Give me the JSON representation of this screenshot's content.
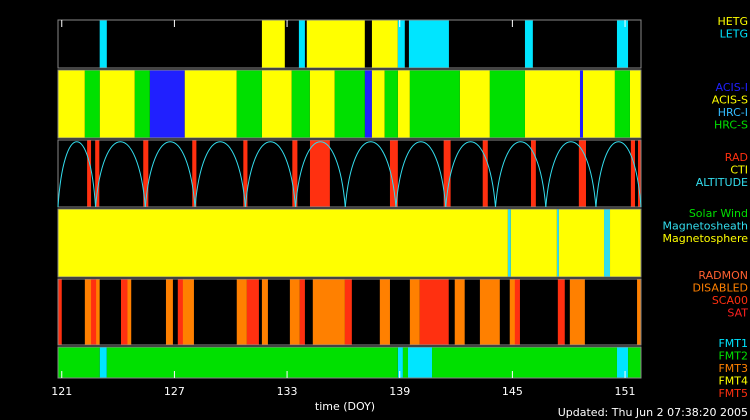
{
  "chart_data": {
    "type": "timeline",
    "xlabel": "time (DOY)",
    "footer": "Updated: Thu Jun  2 07:38:20 2005",
    "xlim": [
      120.8,
      151.85
    ],
    "xticks": [
      121,
      127,
      133,
      139,
      145,
      151
    ],
    "panels": [
      {
        "series": [
          {
            "name": "HETG",
            "color": "#ffff00",
            "values": [
              [
                131.66,
                132.88
              ],
              [
                134.05,
                137.14
              ],
              [
                137.52,
                138.9
              ]
            ]
          },
          {
            "name": "LETG",
            "color": "#00e5ff",
            "values": [
              [
                123.02,
                123.4
              ],
              [
                133.63,
                133.95
              ],
              [
                138.9,
                139.27
              ],
              [
                139.49,
                141.62
              ],
              [
                145.67,
                146.09
              ],
              [
                150.57,
                151.16
              ]
            ]
          }
        ]
      },
      {
        "series": [
          {
            "name": "ACIS-I",
            "color": "#2020ff",
            "values": [
              [
                125.69,
                127.55
              ],
              [
                137.14,
                137.52
              ],
              [
                148.6,
                148.76
              ]
            ]
          },
          {
            "name": "ACIS-S",
            "color": "#ffff00",
            "values": [
              [
                120.8,
                122.23
              ],
              [
                123.02,
                124.89
              ],
              [
                127.55,
                130.32
              ],
              [
                131.66,
                133.25
              ],
              [
                134.21,
                135.54
              ],
              [
                137.52,
                138.2
              ],
              [
                138.9,
                139.54
              ],
              [
                142.2,
                143.8
              ],
              [
                145.67,
                148.6
              ],
              [
                148.76,
                150.46
              ],
              [
                151.26,
                151.85
              ]
            ]
          },
          {
            "name": "HRC-I",
            "color": "#33bbff",
            "values": []
          },
          {
            "name": "HRC-S",
            "color": "#00e000",
            "values": [
              [
                122.23,
                123.02
              ],
              [
                124.89,
                125.69
              ],
              [
                130.32,
                131.66
              ],
              [
                133.25,
                134.21
              ],
              [
                135.54,
                137.14
              ],
              [
                138.2,
                138.9
              ],
              [
                139.54,
                142.2
              ],
              [
                143.8,
                145.67
              ],
              [
                150.46,
                151.26
              ]
            ]
          }
        ]
      },
      {
        "series": [
          {
            "name": "RAD",
            "color": "#ff3010",
            "values": [
              [
                122.35,
                122.56
              ],
              [
                122.78,
                123.0
              ],
              [
                125.34,
                125.61
              ],
              [
                127.95,
                128.17
              ],
              [
                130.67,
                130.89
              ],
              [
                133.28,
                133.55
              ],
              [
                134.22,
                135.28
              ],
              [
                138.48,
                138.9
              ],
              [
                141.34,
                141.71
              ],
              [
                143.42,
                143.69
              ],
              [
                145.99,
                146.25
              ],
              [
                148.54,
                148.92
              ],
              [
                151.31,
                151.53
              ],
              [
                151.69,
                151.85
              ]
            ]
          },
          {
            "name": "CTI",
            "color": "#ffff00",
            "values": []
          },
          {
            "name": "ALTITUDE",
            "color": "#33ddee",
            "values": [
              120.8,
              122.8,
              125.45,
              128.1,
              130.78,
              133.45,
              136.1,
              138.8,
              141.45,
              144.1,
              146.78,
              149.45,
              151.85
            ]
          }
        ]
      },
      {
        "series": [
          {
            "name": "Solar Wind",
            "color": "#00e000",
            "values": []
          },
          {
            "name": "Magnetosheath",
            "color": "#33ddee",
            "values": [
              [
                144.76,
                144.92
              ],
              [
                147.37,
                147.48
              ],
              [
                149.88,
                150.2
              ]
            ]
          },
          {
            "name": "Magnetosphere",
            "color": "#ffff00",
            "values": [
              [
                120.8,
                144.76
              ],
              [
                144.92,
                147.37
              ],
              [
                147.48,
                149.88
              ],
              [
                150.2,
                151.85
              ]
            ]
          }
        ]
      },
      {
        "series": [
          {
            "name": "RADMON",
            "color": "#ff6030",
            "values": []
          },
          {
            "name": "DISABLED",
            "color": "#ff8000",
            "values": [
              [
                122.23,
                123.02
              ],
              [
                124.16,
                124.7
              ],
              [
                126.55,
                126.92
              ],
              [
                127.34,
                128.04
              ],
              [
                130.32,
                130.86
              ],
              [
                131.66,
                131.98
              ],
              [
                133.15,
                133.68
              ],
              [
                134.37,
                136.08
              ],
              [
                137.94,
                138.48
              ],
              [
                139.54,
                140.07
              ],
              [
                141.93,
                142.46
              ],
              [
                143.27,
                144.33
              ],
              [
                144.86,
                145.39
              ],
              [
                148.06,
                148.86
              ],
              [
                151.64,
                151.85
              ]
            ]
          },
          {
            "name": "SCA00",
            "color": "#ff3010",
            "values": [
              [
                120.8,
                121.0
              ],
              [
                122.56,
                122.83
              ],
              [
                124.5,
                124.16
              ],
              [
                127.18,
                127.45
              ],
              [
                130.86,
                131.5
              ],
              [
                133.68,
                133.95
              ],
              [
                136.08,
                136.45
              ],
              [
                140.07,
                141.61
              ],
              [
                145.13,
                145.4
              ],
              [
                147.42,
                147.79
              ]
            ]
          },
          {
            "name": "SAT",
            "color": "#ff2020",
            "values": []
          }
        ]
      },
      {
        "series": [
          {
            "name": "FMT1",
            "color": "#00e5ff",
            "values": [
              [
                123.02,
                123.4
              ],
              [
                138.9,
                139.17
              ],
              [
                139.44,
                140.72
              ],
              [
                150.57,
                151.16
              ]
            ]
          },
          {
            "name": "FMT2",
            "color": "#00e000",
            "values": [
              [
                120.8,
                123.02
              ],
              [
                123.4,
                138.9
              ],
              [
                139.17,
                139.44
              ],
              [
                140.72,
                150.57
              ],
              [
                151.16,
                151.85
              ]
            ]
          },
          {
            "name": "FMT3",
            "color": "#ff8000",
            "values": []
          },
          {
            "name": "FMT4",
            "color": "#ffff00",
            "values": []
          },
          {
            "name": "FMT5",
            "color": "#ff3010",
            "values": []
          }
        ]
      }
    ]
  }
}
